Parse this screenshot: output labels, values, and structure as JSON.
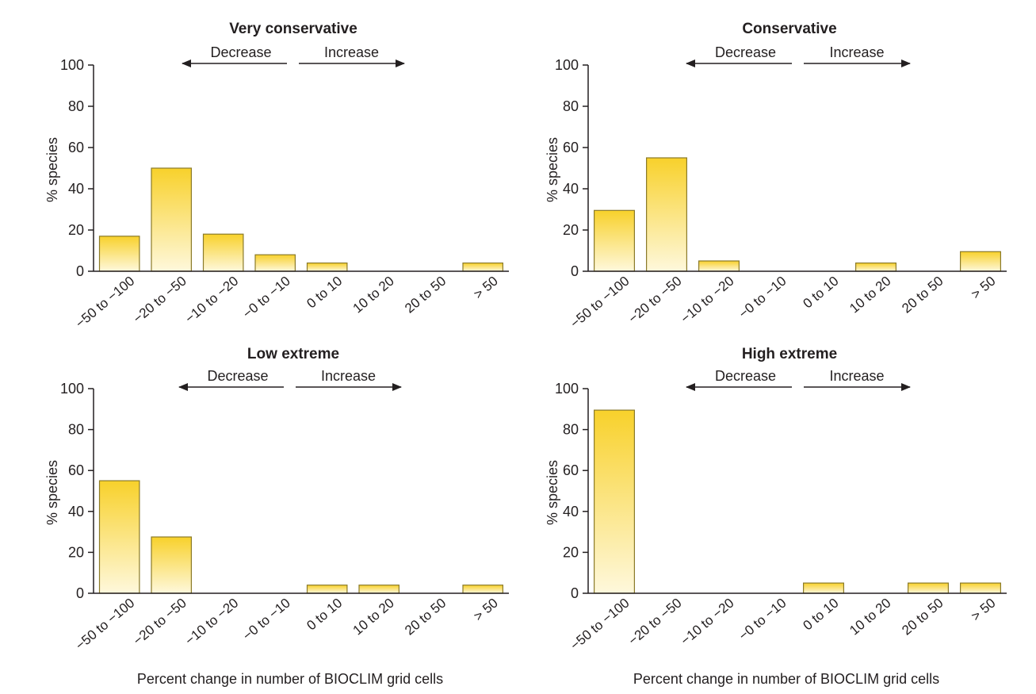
{
  "chart_data": [
    {
      "type": "bar",
      "title": "Very conservative",
      "ylabel": "% species",
      "xlabel": "",
      "ylim": [
        0,
        100
      ],
      "yticks": [
        0,
        20,
        40,
        60,
        80,
        100
      ],
      "categories": [
        "−50 to −100",
        "−20 to −50",
        "−10 to −20",
        "−0 to −10",
        "0 to 10",
        "10 to 20",
        "20 to 50",
        "> 50"
      ],
      "values": [
        17,
        50,
        18,
        8,
        4,
        0,
        0,
        4
      ],
      "annotations": {
        "decrease": "Decrease",
        "increase": "Increase"
      },
      "grid": false
    },
    {
      "type": "bar",
      "title": "Conservative",
      "ylabel": "% species",
      "xlabel": "",
      "ylim": [
        0,
        100
      ],
      "yticks": [
        0,
        20,
        40,
        60,
        80,
        100
      ],
      "categories": [
        "−50 to −100",
        "−20 to −50",
        "−10 to −20",
        "−0 to −10",
        "0 to 10",
        "10 to 20",
        "20 to 50",
        "> 50"
      ],
      "values": [
        29.5,
        55,
        5,
        0,
        0,
        4,
        0,
        9.5
      ],
      "annotations": {
        "decrease": "Decrease",
        "increase": "Increase"
      },
      "grid": false
    },
    {
      "type": "bar",
      "title": "Low extreme",
      "ylabel": "% species",
      "xlabel": "Percent change in number of BIOCLIM grid cells",
      "ylim": [
        0,
        100
      ],
      "yticks": [
        0,
        20,
        40,
        60,
        80,
        100
      ],
      "categories": [
        "−50 to −100",
        "−20 to −50",
        "−10 to −20",
        "−0 to −10",
        "0 to 10",
        "10 to 20",
        "20 to 50",
        "> 50"
      ],
      "values": [
        55,
        27.5,
        0,
        0,
        4,
        4,
        0,
        4
      ],
      "annotations": {
        "decrease": "Decrease",
        "increase": "Increase"
      },
      "grid": false
    },
    {
      "type": "bar",
      "title": "High extreme",
      "ylabel": "% species",
      "xlabel": "Percent change in number of BIOCLIM grid cells",
      "ylim": [
        0,
        100
      ],
      "yticks": [
        0,
        20,
        40,
        60,
        80,
        100
      ],
      "categories": [
        "−50 to −100",
        "−20 to −50",
        "−10 to −20",
        "−0 to −10",
        "0 to 10",
        "10 to 20",
        "20 to 50",
        "> 50"
      ],
      "values": [
        89.5,
        0,
        0,
        0,
        5,
        0,
        5,
        5
      ],
      "annotations": {
        "decrease": "Decrease",
        "increase": "Increase"
      },
      "grid": false
    }
  ],
  "colors": {
    "bar_top": "#f8d12b",
    "bar_bottom": "#fef8dc",
    "bar_stroke": "#8a7a2a",
    "axis": "#231f20",
    "text": "#231f20"
  }
}
